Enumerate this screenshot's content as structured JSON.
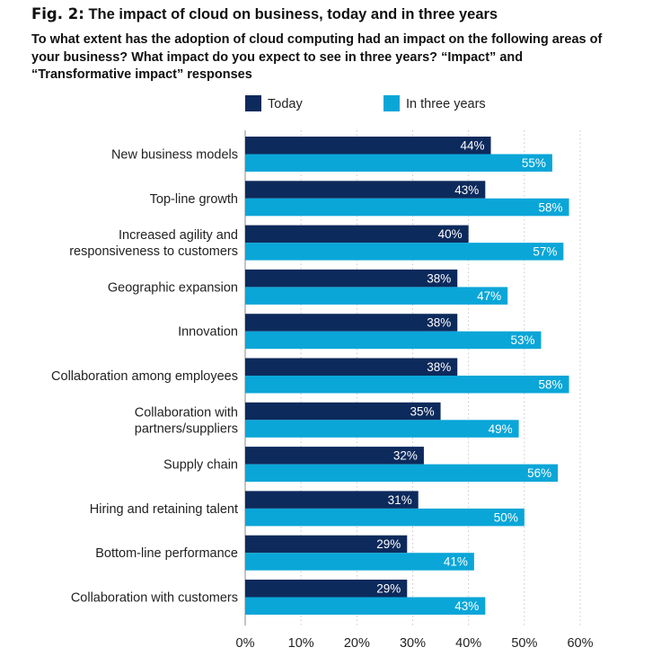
{
  "header": {
    "fig_label": "Fig. 2:",
    "title": "The impact of cloud on business, today and in three years",
    "subtitle": "To what extent has the adoption of cloud computing had an impact on the following areas of your business? What impact do you expect to see in three years? “Impact” and “Transformative impact” responses"
  },
  "colors": {
    "today": "#0d2a5c",
    "three_years": "#0aa6d8",
    "grid": "#c8c8c8"
  },
  "chart_data": {
    "type": "bar",
    "orientation": "horizontal",
    "title": "Fig. 2: The impact of cloud on business, today and in three years",
    "categories": [
      [
        "New business models"
      ],
      [
        "Top-line growth"
      ],
      [
        "Increased agility and",
        "responsiveness to customers"
      ],
      [
        "Geographic expansion"
      ],
      [
        "Innovation"
      ],
      [
        "Collaboration among employees"
      ],
      [
        "Collaboration with",
        "partners/suppliers"
      ],
      [
        "Supply chain"
      ],
      [
        "Hiring and retaining talent"
      ],
      [
        "Bottom-line performance"
      ],
      [
        "Collaboration with customers"
      ]
    ],
    "series": [
      {
        "name": "Today",
        "values": [
          44,
          43,
          40,
          38,
          38,
          38,
          35,
          32,
          31,
          29,
          29
        ]
      },
      {
        "name": "In three years",
        "values": [
          55,
          58,
          57,
          47,
          53,
          58,
          49,
          56,
          50,
          41,
          43
        ]
      }
    ],
    "value_suffix": "%",
    "xlim": [
      0,
      60
    ],
    "xticks": [
      "0%",
      "10%",
      "20%",
      "30%",
      "40%",
      "50%",
      "60%"
    ],
    "xlabel": "",
    "ylabel": "",
    "grid": "vertical dotted",
    "legend": "top"
  }
}
